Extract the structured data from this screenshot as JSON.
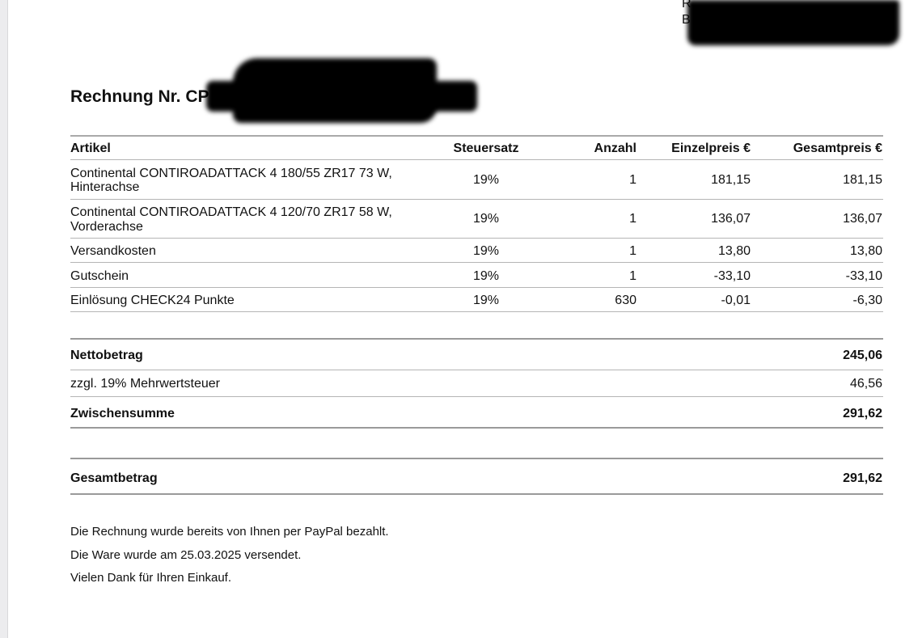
{
  "header": {
    "title": "Rechnung Nr. CP",
    "corner_letters": [
      "R",
      "B"
    ]
  },
  "table": {
    "columns": [
      "Artikel",
      "Steuersatz",
      "Anzahl",
      "Einzelpreis €",
      "Gesamtpreis €"
    ],
    "rows": [
      {
        "article": [
          "Continental CONTIROADATTACK 4 180/55 ZR17 73 W,",
          "Hinterachse"
        ],
        "tax": "19%",
        "qty": "1",
        "unit": "181,15",
        "total": "181,15"
      },
      {
        "article": [
          "Continental CONTIROADATTACK 4 120/70 ZR17 58 W,",
          "Vorderachse"
        ],
        "tax": "19%",
        "qty": "1",
        "unit": "136,07",
        "total": "136,07"
      },
      {
        "article": [
          "Versandkosten"
        ],
        "tax": "19%",
        "qty": "1",
        "unit": "13,80",
        "total": "13,80"
      },
      {
        "article": [
          "Gutschein"
        ],
        "tax": "19%",
        "qty": "1",
        "unit": "-33,10",
        "total": "-33,10"
      },
      {
        "article": [
          "Einlösung CHECK24 Punkte"
        ],
        "tax": "19%",
        "qty": "630",
        "unit": "-0,01",
        "total": "-6,30"
      }
    ]
  },
  "totals": {
    "net_label": "Nettobetrag",
    "net": "245,06",
    "vat_label": "zzgl. 19% Mehrwertsteuer",
    "vat": "46,56",
    "subtotal_label": "Zwischensumme",
    "subtotal": "291,62",
    "grand_label": "Gesamtbetrag",
    "grand": "291,62"
  },
  "footer": {
    "lines": [
      "Die Rechnung wurde bereits von Ihnen per PayPal bezahlt.",
      "Die Ware wurde am 25.03.2025 versendet.",
      "Vielen Dank für Ihren Einkauf."
    ]
  }
}
